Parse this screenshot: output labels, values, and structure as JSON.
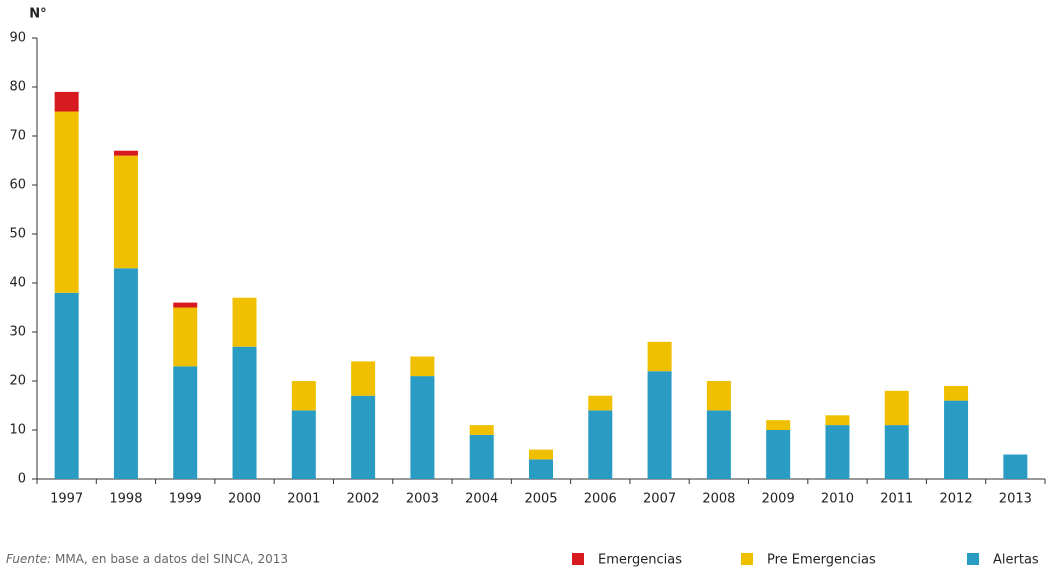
{
  "chart_data": {
    "type": "stacked_bar",
    "y_label": "N°",
    "categories": [
      "1997",
      "1998",
      "1999",
      "2000",
      "2001",
      "2002",
      "2003",
      "2004",
      "2005",
      "2006",
      "2007",
      "2008",
      "2009",
      "2010",
      "2011",
      "2012",
      "2013"
    ],
    "series": [
      {
        "name": "Alertas",
        "color": "#2a9cc4",
        "values": [
          38,
          43,
          23,
          27,
          14,
          17,
          21,
          9,
          4,
          14,
          22,
          14,
          10,
          11,
          11,
          16,
          5
        ]
      },
      {
        "name": "Pre Emergencias",
        "color": "#f0c000",
        "values": [
          37,
          23,
          12,
          10,
          6,
          7,
          4,
          2,
          2,
          3,
          6,
          6,
          2,
          2,
          7,
          3,
          0
        ]
      },
      {
        "name": "Emergencias",
        "color": "#d71920",
        "values": [
          4,
          1,
          1,
          0,
          0,
          0,
          0,
          0,
          0,
          0,
          0,
          0,
          0,
          0,
          0,
          0,
          0
        ]
      }
    ],
    "ylim": [
      0,
      90
    ],
    "yticks": [
      0,
      10,
      20,
      30,
      40,
      50,
      60,
      70,
      80,
      90
    ],
    "source": {
      "label": "Fuente:",
      "text": "MMA, en base a datos del SINCA, 2013"
    }
  }
}
